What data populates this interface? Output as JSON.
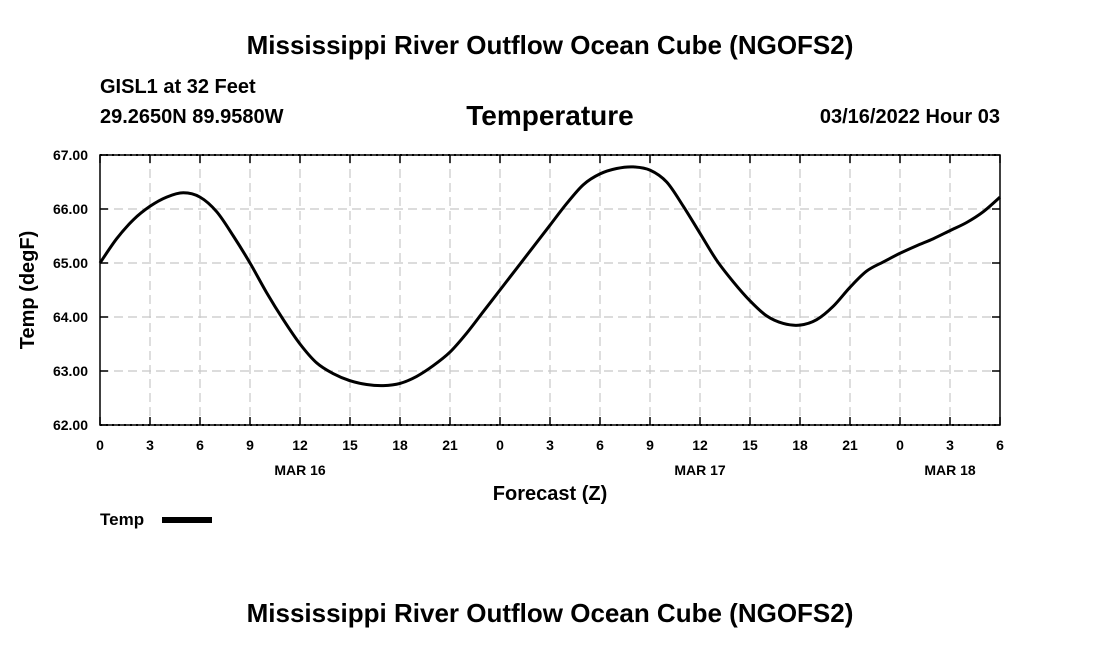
{
  "header": {
    "main_title": "Mississippi River Outflow Ocean Cube (NGOFS2)",
    "station": "GISL1 at 32 Feet",
    "coords": "29.2650N  89.9580W",
    "parameter": "Temperature",
    "datetime": "03/16/2022 Hour 03"
  },
  "footer": {
    "title": "Mississippi River Outflow Ocean Cube (NGOFS2)"
  },
  "chart_data": {
    "type": "line",
    "title": "Temperature",
    "xlabel": "Forecast (Z)",
    "ylabel": "Temp (degF)",
    "xlim": [
      0,
      54
    ],
    "ylim": [
      62,
      67
    ],
    "grid": true,
    "x_tick_labels": [
      "0",
      "3",
      "6",
      "9",
      "12",
      "15",
      "18",
      "21",
      "0",
      "3",
      "6",
      "9",
      "12",
      "15",
      "18",
      "21",
      "0",
      "3",
      "6"
    ],
    "y_tick_labels": [
      "62.00",
      "63.00",
      "64.00",
      "65.00",
      "66.00",
      "67.00"
    ],
    "date_labels": [
      {
        "label": "MAR 16",
        "x": 12
      },
      {
        "label": "MAR 17",
        "x": 36
      },
      {
        "label": "MAR 18",
        "x": 51
      }
    ],
    "legend": {
      "label": "Temp",
      "placement": "bottom-left"
    },
    "series": [
      {
        "name": "Temp",
        "color": "#000000",
        "x": [
          0,
          1,
          2,
          3,
          4,
          5,
          6,
          7,
          8,
          9,
          10,
          11,
          12,
          13,
          14,
          15,
          16,
          17,
          18,
          19,
          20,
          21,
          22,
          23,
          24,
          25,
          26,
          27,
          28,
          29,
          30,
          31,
          32,
          33,
          34,
          35,
          36,
          37,
          38,
          39,
          40,
          41,
          42,
          43,
          44,
          45,
          46,
          47,
          48,
          49,
          50,
          51,
          52,
          53,
          54
        ],
        "values": [
          65.0,
          65.45,
          65.8,
          66.05,
          66.22,
          66.3,
          66.22,
          65.95,
          65.5,
          65.0,
          64.45,
          63.95,
          63.5,
          63.15,
          62.95,
          62.82,
          62.75,
          62.73,
          62.77,
          62.9,
          63.1,
          63.35,
          63.7,
          64.1,
          64.5,
          64.9,
          65.3,
          65.7,
          66.1,
          66.45,
          66.65,
          66.75,
          66.78,
          66.72,
          66.5,
          66.05,
          65.55,
          65.05,
          64.65,
          64.3,
          64.02,
          63.88,
          63.85,
          63.95,
          64.2,
          64.55,
          64.85,
          65.02,
          65.18,
          65.32,
          65.45,
          65.6,
          65.75,
          65.95,
          66.22
        ]
      }
    ]
  }
}
